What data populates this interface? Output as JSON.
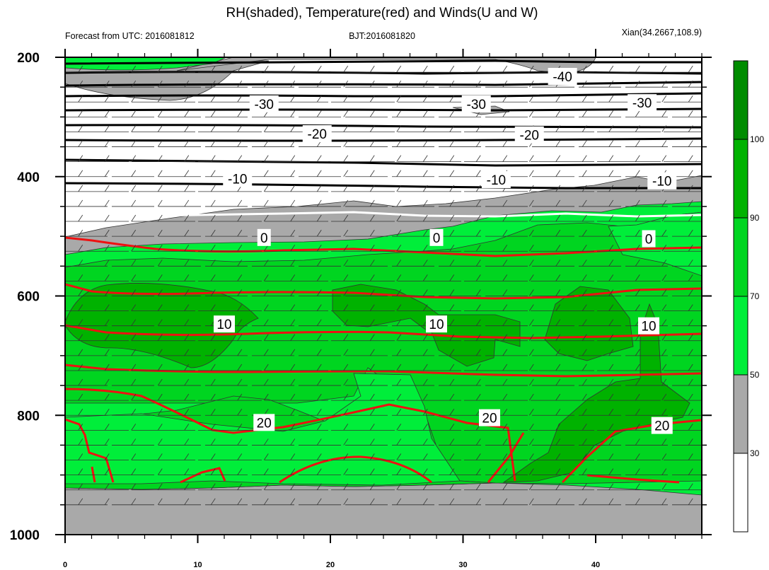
{
  "chart_data": {
    "type": "contour",
    "title": "RH(shaded), Temperature(red) and Winds(U and W)",
    "subtitle_left": "Forecast from UTC: 2016081812",
    "subtitle_center": "BJT:2016081820",
    "subtitle_right": "Xian(34.2667,108.9)",
    "x_ticks": [
      "0",
      "10",
      "20",
      "30",
      "40"
    ],
    "y_ticks": [
      "200",
      "400",
      "600",
      "800",
      "1000"
    ],
    "xlim": [
      0,
      48
    ],
    "ylim": [
      200,
      1000
    ],
    "y_axis_inverted": true,
    "rh_levels": [
      30,
      50,
      70,
      90,
      100
    ],
    "rh_colorbar_labels": [
      "100",
      "90",
      "70",
      "50",
      "30"
    ],
    "colorbar_colors": [
      "#ffffff",
      "#a9a9a9",
      "#00ee3a",
      "#00d520",
      "#00b200",
      "#008c00"
    ],
    "temperature_contour_labels": [
      {
        "text": "-40",
        "x": 37.5,
        "y": 232
      },
      {
        "text": "-30",
        "x": 15,
        "y": 278
      },
      {
        "text": "-30",
        "x": 31,
        "y": 278
      },
      {
        "text": "-30",
        "x": 43.5,
        "y": 276
      },
      {
        "text": "-20",
        "x": 19,
        "y": 328
      },
      {
        "text": "-20",
        "x": 35,
        "y": 330
      },
      {
        "text": "-10",
        "x": 13,
        "y": 403
      },
      {
        "text": "-10",
        "x": 32.5,
        "y": 405
      },
      {
        "text": "-10",
        "x": 45,
        "y": 407
      },
      {
        "text": "0",
        "x": 15,
        "y": 502
      },
      {
        "text": "0",
        "x": 28,
        "y": 502
      },
      {
        "text": "0",
        "x": 44,
        "y": 504
      },
      {
        "text": "10",
        "x": 12,
        "y": 647
      },
      {
        "text": "10",
        "x": 28,
        "y": 647
      },
      {
        "text": "10",
        "x": 44,
        "y": 650
      },
      {
        "text": "20",
        "x": 15,
        "y": 812
      },
      {
        "text": "20",
        "x": 32,
        "y": 804
      },
      {
        "text": "20",
        "x": 45,
        "y": 817
      }
    ],
    "grid": false,
    "legend": "colorbar-right"
  }
}
